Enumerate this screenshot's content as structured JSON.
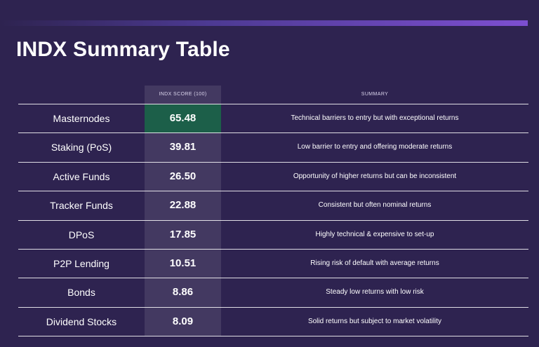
{
  "title": "INDX Summary Table",
  "colors": {
    "background": "#2e2350",
    "accent_bar": "#7d4fd0",
    "highlight": "#1c5f49"
  },
  "table": {
    "headers": {
      "name": "",
      "score": "INDX SCORE (100)",
      "summary": "SUMMARY"
    },
    "rows": [
      {
        "name": "Masternodes",
        "score": "65.48",
        "summary": "Technical barriers to entry but with exceptional returns"
      },
      {
        "name": "Staking (PoS)",
        "score": "39.81",
        "summary": "Low barrier to entry and offering moderate returns"
      },
      {
        "name": "Active Funds",
        "score": "26.50",
        "summary": "Opportunity of higher returns but can be inconsistent"
      },
      {
        "name": "Tracker Funds",
        "score": "22.88",
        "summary": "Consistent but often nominal returns"
      },
      {
        "name": "DPoS",
        "score": "17.85",
        "summary": "Highly technical & expensive to set-up"
      },
      {
        "name": "P2P Lending",
        "score": "10.51",
        "summary": "Rising risk of default with average returns"
      },
      {
        "name": "Bonds",
        "score": "8.86",
        "summary": "Steady low returns with low risk"
      },
      {
        "name": "Dividend Stocks",
        "score": "8.09",
        "summary": "Solid returns but subject to market volatility"
      }
    ]
  }
}
